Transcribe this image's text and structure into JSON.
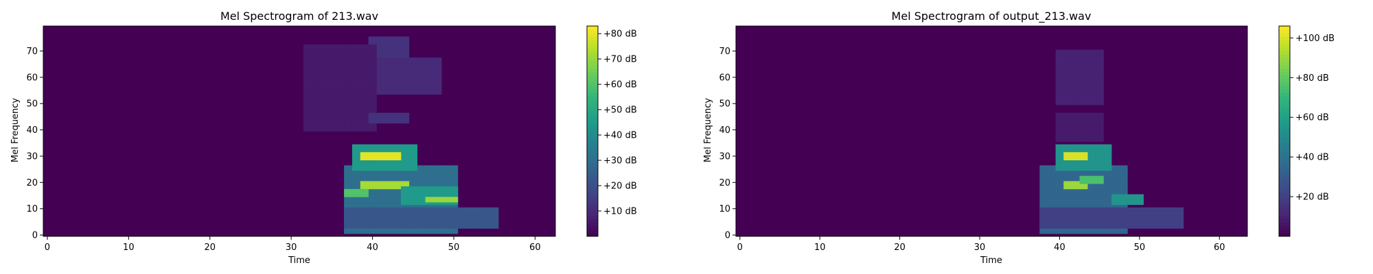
{
  "chart_data": [
    {
      "type": "heatmap",
      "title": "Mel Spectrogram of 213.wav",
      "xlabel": "Time",
      "ylabel": "Mel Frequency",
      "xlim": [
        -0.5,
        62.5
      ],
      "ylim": [
        -0.5,
        79.5
      ],
      "x_ticks": [
        0,
        10,
        20,
        30,
        40,
        50,
        60
      ],
      "y_ticks": [
        0,
        10,
        20,
        30,
        40,
        50,
        60,
        70
      ],
      "colormap": "viridis",
      "colorbar": {
        "min": 0,
        "max": 83,
        "ticks": [
          10,
          20,
          30,
          40,
          50,
          60,
          70,
          80
        ],
        "format": "+%d dB"
      },
      "blobs": [
        {
          "t": [
            37,
            50
          ],
          "m": [
            1,
            26
          ],
          "db": 30
        },
        {
          "t": [
            38,
            45
          ],
          "m": [
            25,
            34
          ],
          "db": 45
        },
        {
          "t": [
            39,
            43
          ],
          "m": [
            29,
            31
          ],
          "db": 80
        },
        {
          "t": [
            39,
            44
          ],
          "m": [
            18,
            20
          ],
          "db": 72
        },
        {
          "t": [
            37,
            39
          ],
          "m": [
            15,
            17
          ],
          "db": 60
        },
        {
          "t": [
            44,
            50
          ],
          "m": [
            12,
            18
          ],
          "db": 45
        },
        {
          "t": [
            47,
            50
          ],
          "m": [
            13,
            14
          ],
          "db": 70
        },
        {
          "t": [
            37,
            55
          ],
          "m": [
            3,
            10
          ],
          "db": 22
        },
        {
          "t": [
            40,
            44
          ],
          "m": [
            60,
            63
          ],
          "db": 40
        },
        {
          "t": [
            36,
            48
          ],
          "m": [
            54,
            67
          ],
          "db": 10
        },
        {
          "t": [
            40,
            44
          ],
          "m": [
            68,
            75
          ],
          "db": 12
        },
        {
          "t": [
            32,
            40
          ],
          "m": [
            40,
            72
          ],
          "db": 6
        },
        {
          "t": [
            40,
            44
          ],
          "m": [
            43,
            46
          ],
          "db": 12
        }
      ]
    },
    {
      "type": "heatmap",
      "title": "Mel Spectrogram of output_213.wav",
      "xlabel": "Time",
      "ylabel": "Mel Frequency",
      "xlim": [
        -0.5,
        63.5
      ],
      "ylim": [
        -0.5,
        79.5
      ],
      "x_ticks": [
        0,
        10,
        20,
        30,
        40,
        50,
        60
      ],
      "y_ticks": [
        0,
        10,
        20,
        30,
        40,
        50,
        60,
        70
      ],
      "colormap": "viridis",
      "colorbar": {
        "min": 0,
        "max": 106,
        "ticks": [
          20,
          40,
          60,
          80,
          100
        ],
        "format": "+%d dB"
      },
      "blobs": [
        {
          "t": [
            38,
            48
          ],
          "m": [
            1,
            26
          ],
          "db": 35
        },
        {
          "t": [
            40,
            46
          ],
          "m": [
            25,
            34
          ],
          "db": 55
        },
        {
          "t": [
            41,
            43
          ],
          "m": [
            29,
            31
          ],
          "db": 100
        },
        {
          "t": [
            41,
            43
          ],
          "m": [
            18,
            20
          ],
          "db": 90
        },
        {
          "t": [
            43,
            45
          ],
          "m": [
            20,
            22
          ],
          "db": 75
        },
        {
          "t": [
            47,
            50
          ],
          "m": [
            12,
            15
          ],
          "db": 55
        },
        {
          "t": [
            38,
            55
          ],
          "m": [
            3,
            10
          ],
          "db": 20
        },
        {
          "t": [
            41,
            45
          ],
          "m": [
            59,
            62
          ],
          "db": 25
        },
        {
          "t": [
            40,
            45
          ],
          "m": [
            50,
            70
          ],
          "db": 10
        },
        {
          "t": [
            40,
            45
          ],
          "m": [
            36,
            46
          ],
          "db": 8
        }
      ]
    }
  ]
}
